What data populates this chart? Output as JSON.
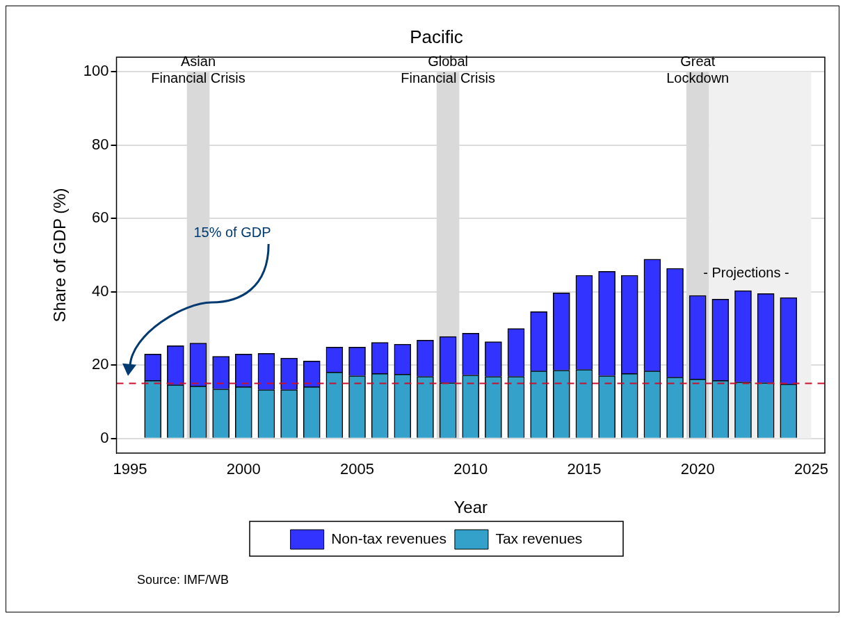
{
  "chart_data": {
    "type": "bar",
    "title": "Pacific",
    "xlabel": "Year",
    "ylabel": "Share of GDP (%)",
    "stacked": true,
    "x": [
      1996,
      1997,
      1998,
      1999,
      2000,
      2001,
      2002,
      2003,
      2004,
      2005,
      2006,
      2007,
      2008,
      2009,
      2010,
      2011,
      2012,
      2013,
      2014,
      2015,
      2016,
      2017,
      2018,
      2019,
      2020,
      2021,
      2022,
      2023,
      2024
    ],
    "series": [
      {
        "name": "Tax revenues",
        "color": "#33a1c9",
        "values": [
          15.8,
          14.6,
          14.3,
          13.5,
          14.1,
          13.3,
          13.3,
          14.1,
          18.1,
          17.1,
          17.7,
          17.5,
          16.9,
          15.2,
          17.3,
          16.9,
          16.9,
          18.4,
          18.6,
          18.8,
          17.1,
          17.7,
          18.4,
          16.7,
          16.2,
          15.8,
          15.4,
          15.2,
          14.8
        ]
      },
      {
        "name": "Non-tax revenues",
        "color": "#3333ff",
        "values": [
          7.2,
          10.7,
          11.7,
          8.9,
          8.9,
          9.9,
          8.6,
          7.0,
          6.8,
          7.8,
          8.5,
          8.2,
          9.9,
          12.6,
          11.4,
          9.5,
          13.1,
          16.2,
          21.1,
          25.7,
          28.5,
          26.8,
          30.5,
          29.7,
          22.8,
          22.2,
          24.9,
          24.3,
          23.6
        ]
      }
    ],
    "xlim": [
      1994.4,
      2025.6
    ],
    "xticks": [
      1995,
      2000,
      2005,
      2010,
      2015,
      2020,
      2025
    ],
    "ylim": [
      -4,
      104
    ],
    "yticks": [
      0,
      20,
      40,
      60,
      80,
      100
    ],
    "grid": "y",
    "legend": "bottom",
    "ref_lines": [
      {
        "axis": "y",
        "value": 15,
        "color": "#c8102e",
        "line_style": "dashed"
      }
    ],
    "bands": [
      {
        "axis": "x",
        "from": 1997.5,
        "to": 1998.5,
        "label": "Asian\nFinancial Crisis",
        "color": "#d9d9d9"
      },
      {
        "axis": "x",
        "from": 2008.5,
        "to": 2009.5,
        "label": "Global\nFinancial Crisis",
        "color": "#d9d9d9"
      },
      {
        "axis": "x",
        "from": 2019.5,
        "to": 2020.5,
        "label": "Great\nLockdown",
        "color": "#d9d9d9"
      },
      {
        "axis": "x",
        "from": 2020.5,
        "to": 2025,
        "label": "- Projections -",
        "color": "#f0f0f0"
      }
    ],
    "annotations": [
      "15% of GDP",
      "Source: IMF/WB"
    ]
  }
}
